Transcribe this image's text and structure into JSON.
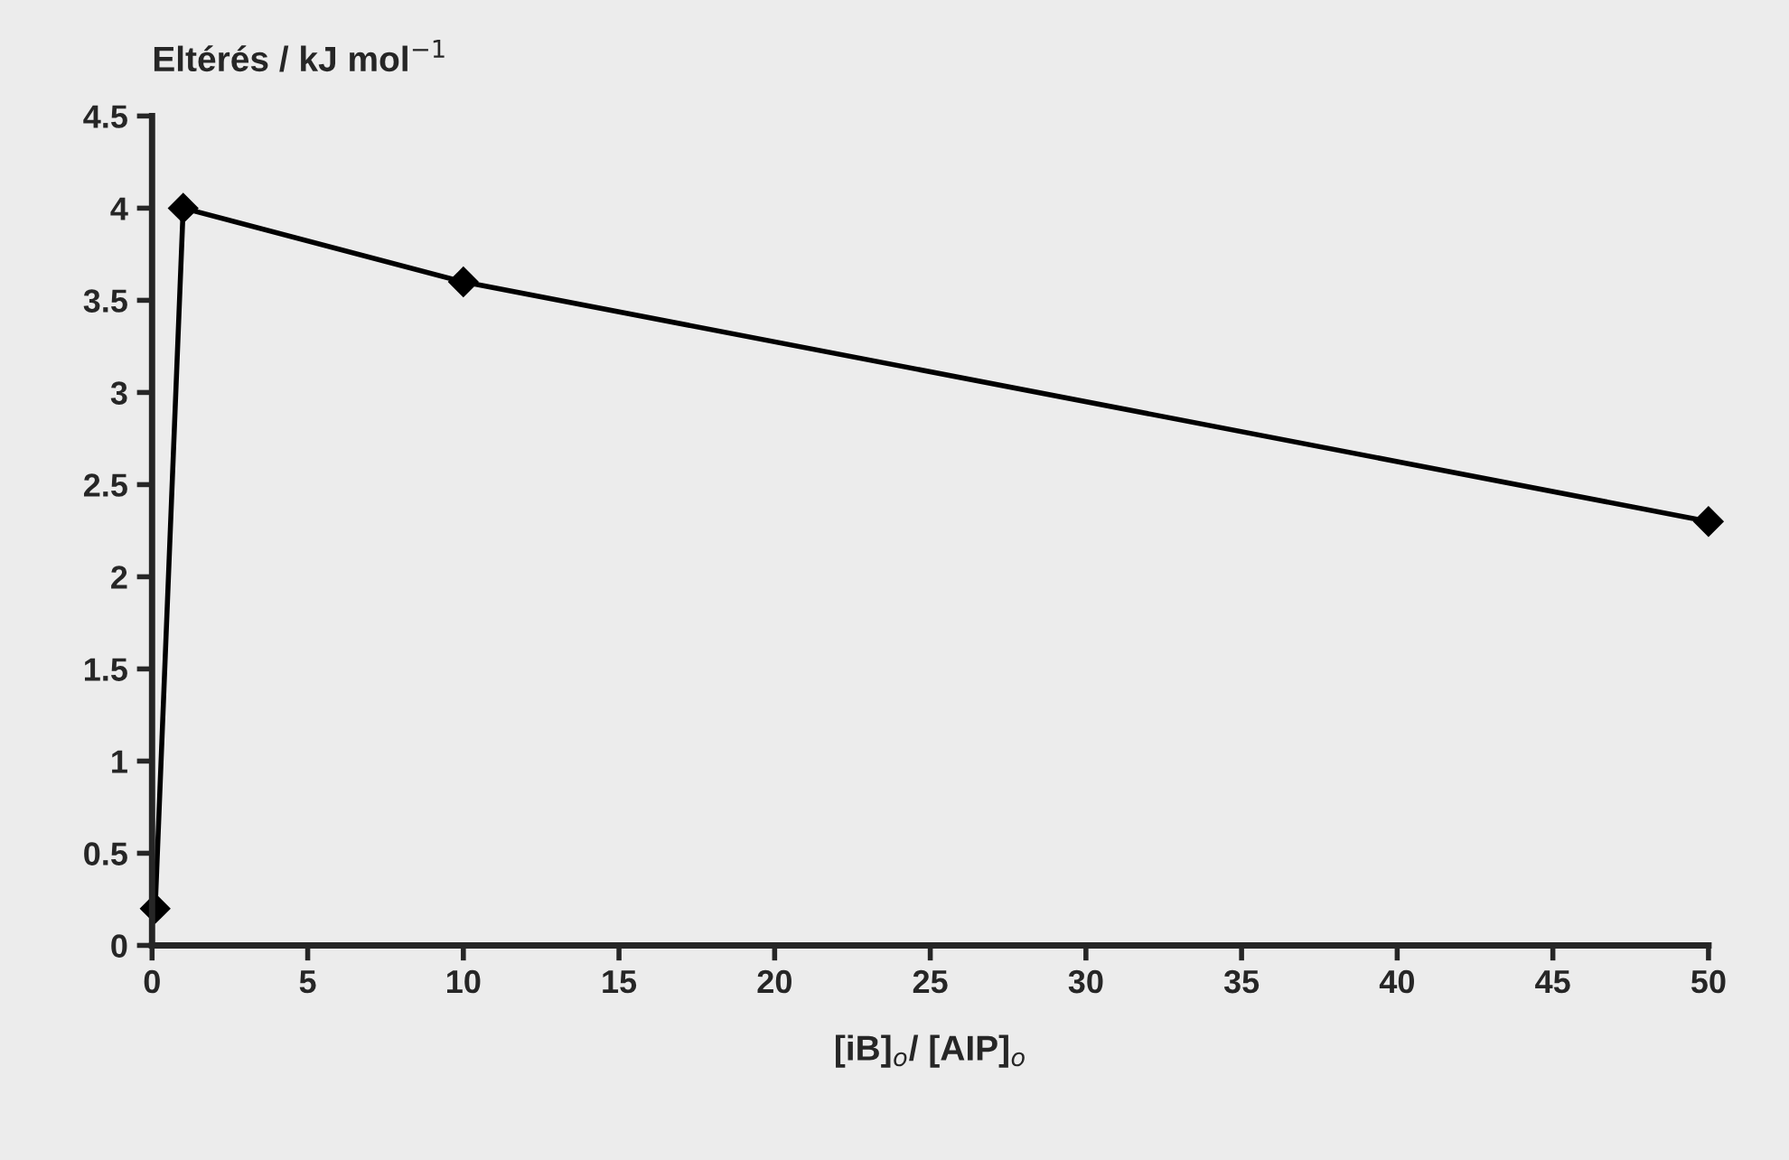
{
  "chart_data": {
    "type": "line",
    "ylabel": "Eltérés / kJ mol$^{−1}$",
    "xlabel": "[iB]$_{o}$/ [AIP]$_{o}$",
    "x": [
      0.1,
      1,
      10,
      50
    ],
    "series": [
      {
        "color": "#000000",
        "values": [
          0.2,
          4.0,
          3.6,
          2.3
        ]
      }
    ],
    "xlim": [
      0,
      50
    ],
    "ylim": [
      0,
      4.5
    ],
    "xticks": [
      0,
      5,
      10,
      15,
      20,
      25,
      30,
      35,
      40,
      45,
      50
    ],
    "yticks": [
      0,
      0.5,
      1,
      1.5,
      2,
      2.5,
      3,
      3.5,
      4,
      4.5
    ],
    "marker": "diamond",
    "line_style": "solid",
    "grid": false,
    "legend": false
  }
}
